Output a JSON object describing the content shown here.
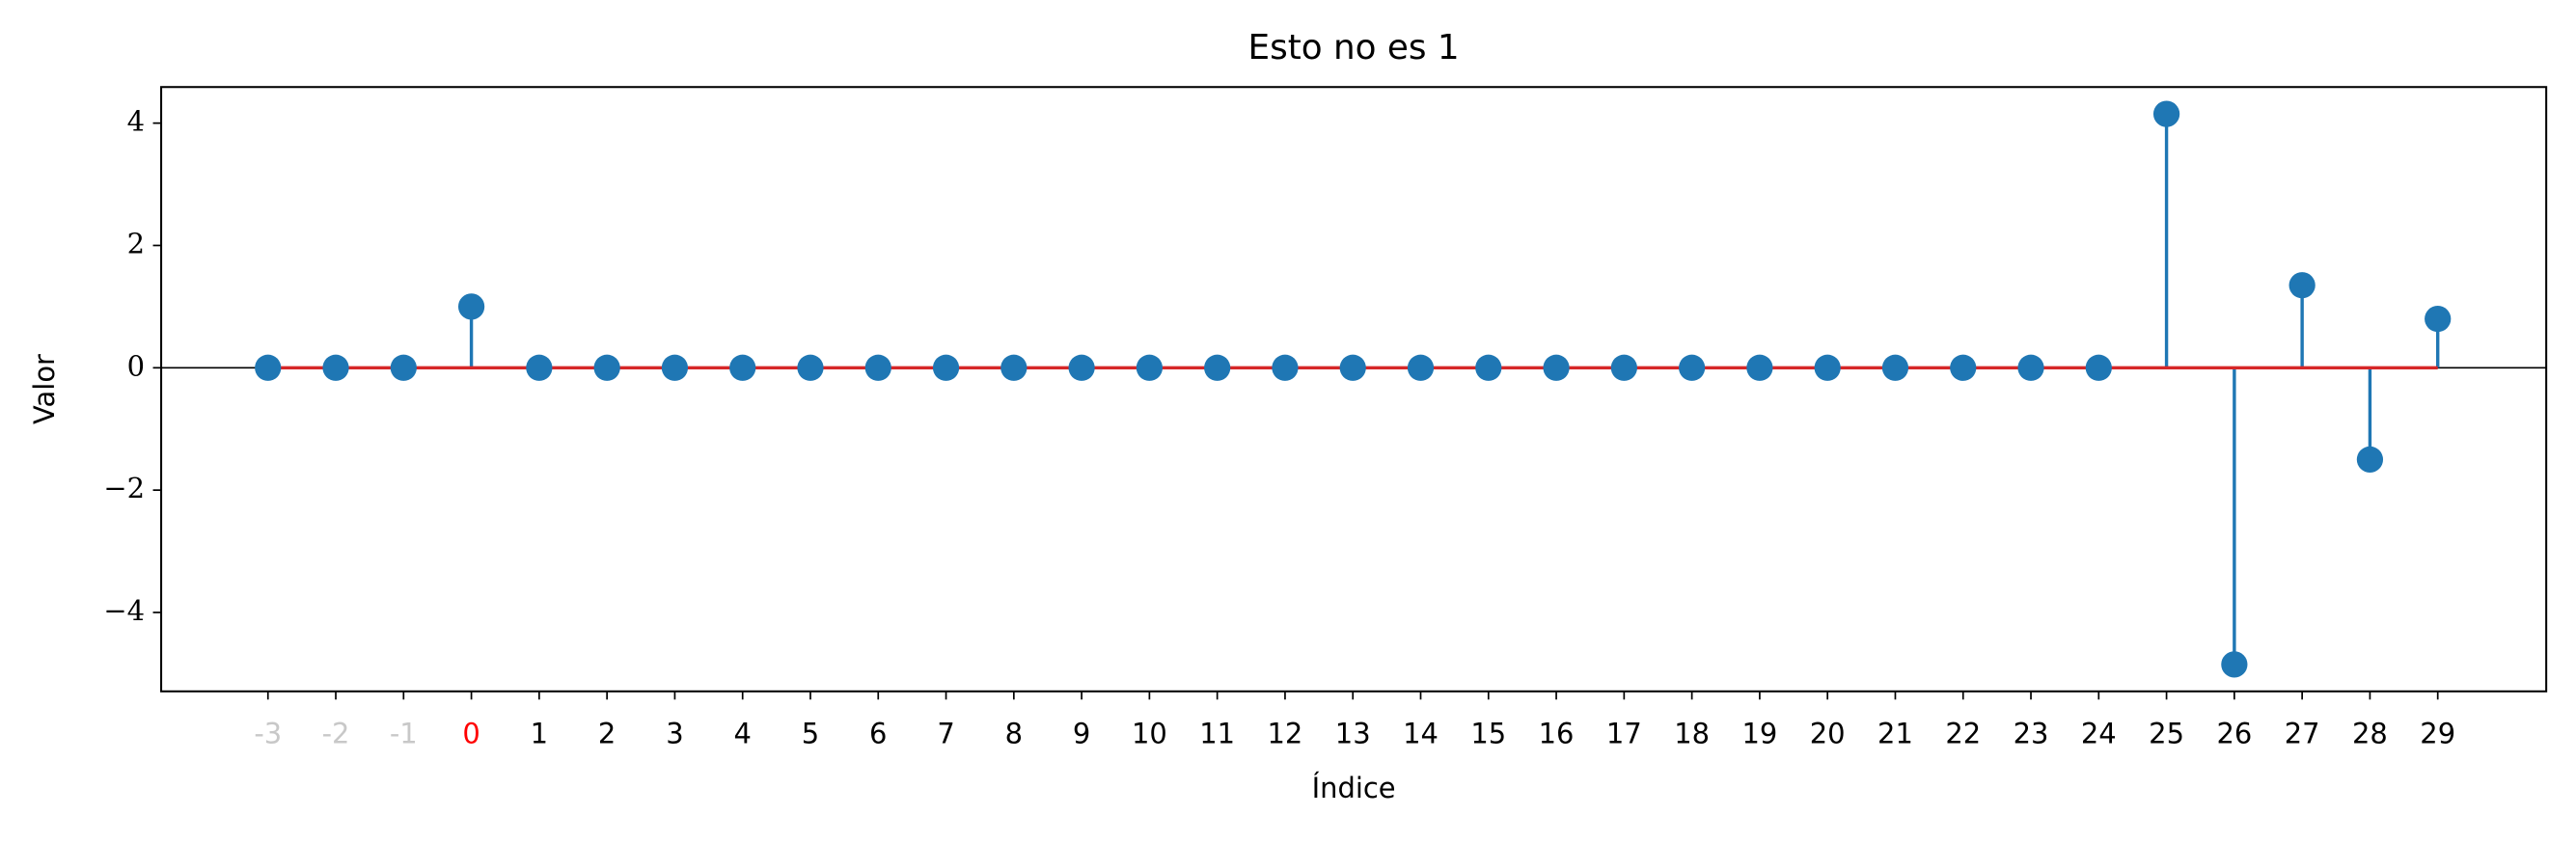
{
  "chart_data": {
    "type": "stem",
    "title": "Esto no es 1",
    "xlabel": "Índice",
    "ylabel": "Valor",
    "x": [
      -3,
      -2,
      -1,
      0,
      1,
      2,
      3,
      4,
      5,
      6,
      7,
      8,
      9,
      10,
      11,
      12,
      13,
      14,
      15,
      16,
      17,
      18,
      19,
      20,
      21,
      22,
      23,
      24,
      25,
      26,
      27,
      28,
      29
    ],
    "values": [
      0,
      0,
      0,
      1.0,
      0,
      0,
      0,
      0,
      0,
      0,
      0,
      0,
      0,
      0,
      0,
      0,
      0,
      0,
      0,
      0,
      0,
      0,
      0,
      0,
      0,
      0,
      0,
      0,
      4.15,
      -4.85,
      1.35,
      -1.5,
      0.8
    ],
    "color": "#1f77b4",
    "baseline_color": "#d62728",
    "zero_line_color": "#000000",
    "xlim": [
      -4.575,
      30.6
    ],
    "ylim": [
      -5.29,
      4.59
    ],
    "xticks": [
      -3,
      -2,
      -1,
      0,
      1,
      2,
      3,
      4,
      5,
      6,
      7,
      8,
      9,
      10,
      11,
      12,
      13,
      14,
      15,
      16,
      17,
      18,
      19,
      20,
      21,
      22,
      23,
      24,
      25,
      26,
      27,
      28,
      29
    ],
    "xtick_colors": [
      "#c8c8c8",
      "#c8c8c8",
      "#c8c8c8",
      "#ff0000",
      "#000000",
      "#000000",
      "#000000",
      "#000000",
      "#000000",
      "#000000",
      "#000000",
      "#000000",
      "#000000",
      "#000000",
      "#000000",
      "#000000",
      "#000000",
      "#000000",
      "#000000",
      "#000000",
      "#000000",
      "#000000",
      "#000000",
      "#000000",
      "#000000",
      "#000000",
      "#000000",
      "#000000",
      "#000000",
      "#000000",
      "#000000",
      "#000000",
      "#000000"
    ],
    "yticks": [
      {
        "value": -4,
        "label": "−4"
      },
      {
        "value": -2,
        "label": "−2"
      },
      0,
      2,
      4
    ]
  }
}
